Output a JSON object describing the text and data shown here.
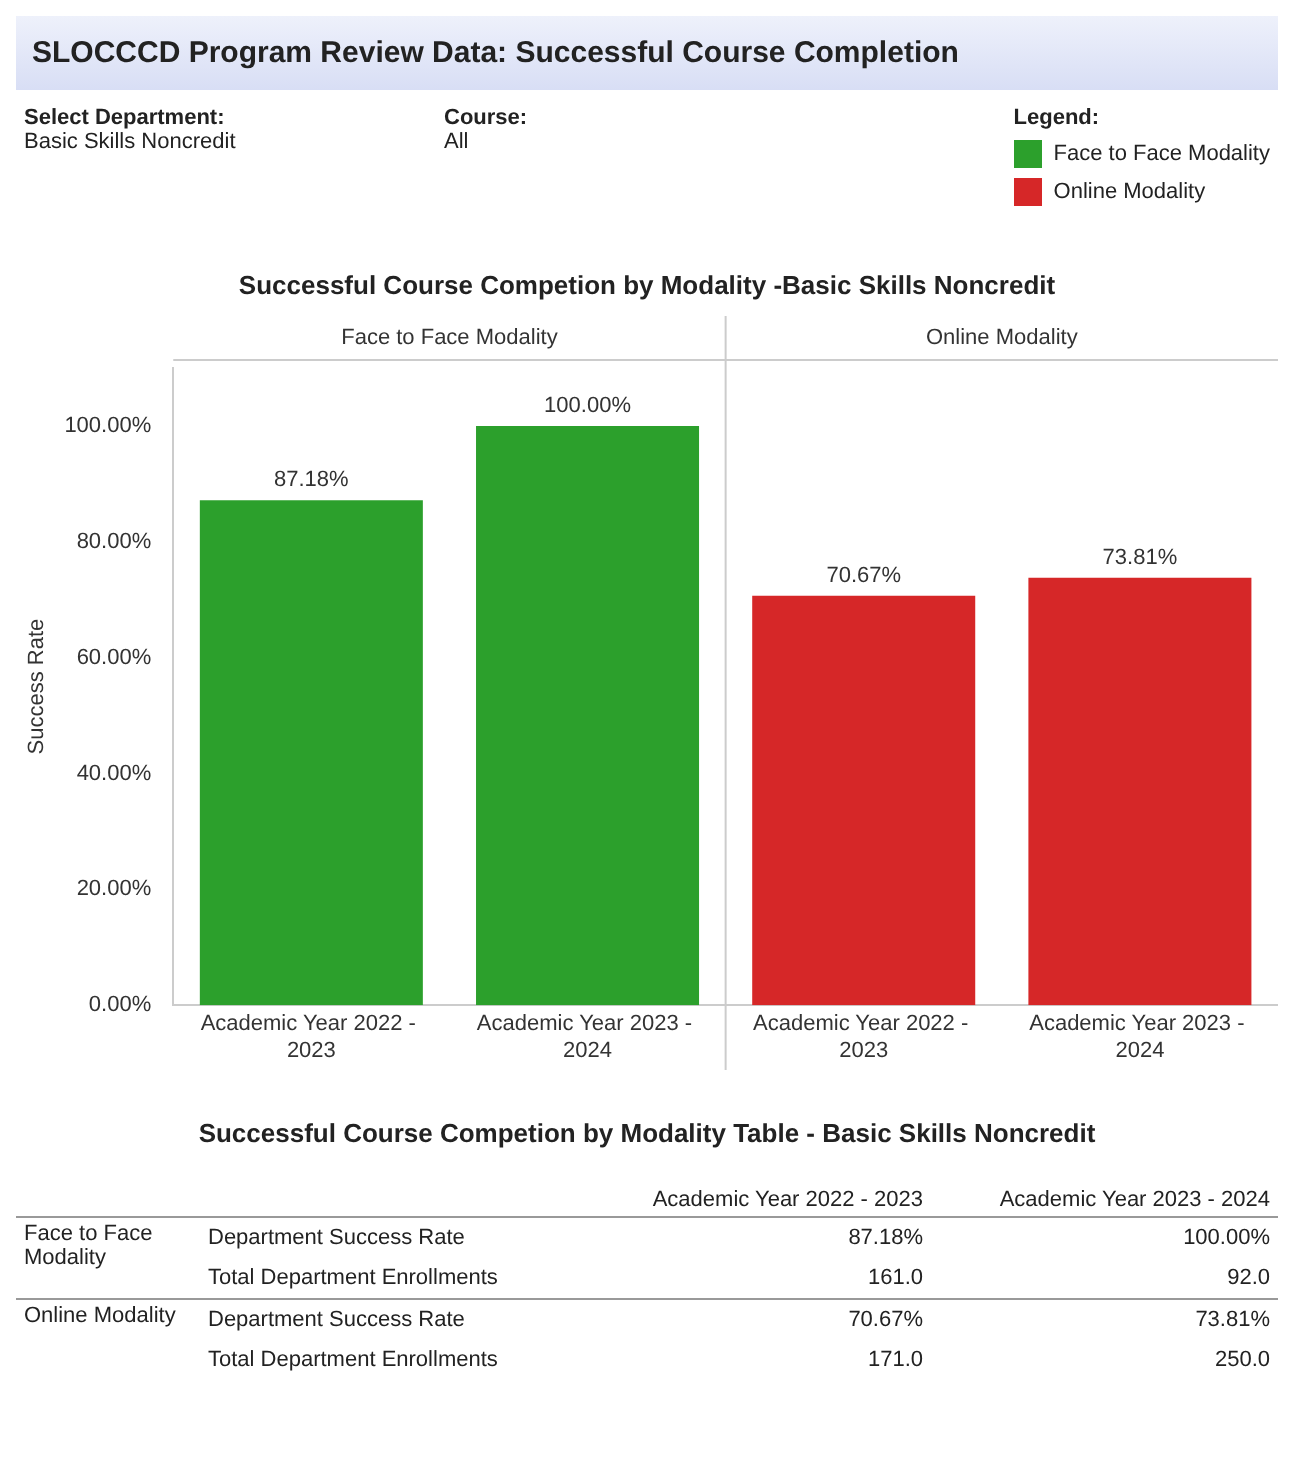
{
  "chart_data": [
    {
      "type": "bar",
      "title": "Successful Course Competion by Modality -Basic Skills Noncredit",
      "ylabel": "Success Rate",
      "legend": "top right",
      "legend_title": "Legend:",
      "annotations": [
        "SLOCCCD Program Review Data: Successful Course Completion",
        "Select Department:",
        "Basic Skills Noncredit",
        "Course:",
        "All",
        "Face to Face Modality",
        "Online Modality"
      ],
      "categories": [
        "Academic Year 2022 - 2023",
        "Academic Year 2023 - 2024",
        "Academic Year 2022 - 2023",
        "Academic Year 2023 - 2024"
      ],
      "series": [
        {
          "name": "Face to Face Modality",
          "color": "#2ca02c",
          "values": [
            87.18,
            100,
            null,
            null
          ],
          "value_labels": [
            "87.18%",
            "100.00%",
            null,
            null
          ]
        },
        {
          "name": "Online Modality",
          "color": "#d62728",
          "values": [
            null,
            null,
            70.67,
            73.81
          ],
          "value_labels": [
            null,
            null,
            "70.67%",
            "73.81%"
          ]
        }
      ],
      "ylim": [
        0,
        110
      ],
      "yticks": [
        {
          "value": 0,
          "label": "0.00%"
        },
        {
          "value": 20,
          "label": "20.00%"
        },
        {
          "value": 40,
          "label": "40.00%"
        },
        {
          "value": 60,
          "label": "60.00%"
        },
        {
          "value": 80,
          "label": "80.00%"
        },
        {
          "value": 100,
          "label": "100.00%"
        }
      ],
      "grid": false
    },
    {
      "type": "other",
      "title": "Successful Course Competion by Modality Table - Basic Skills Noncredit",
      "categories": [
        "Academic Year 2022 - 2023",
        "Academic Year 2023 - 2024"
      ],
      "annotations": [
        "Face to Face Modality",
        "Online Modality"
      ],
      "y_categories": [
        "Department Success Rate",
        "Total Department Enrollments",
        "Department Success Rate",
        "Total Department Enrollments"
      ],
      "cell_labels": [
        [
          "87.18%",
          "100.00%"
        ],
        [
          "161.0",
          "92.0"
        ],
        [
          "70.67%",
          "73.81%"
        ],
        [
          "171.0",
          "250.0"
        ]
      ]
    }
  ]
}
